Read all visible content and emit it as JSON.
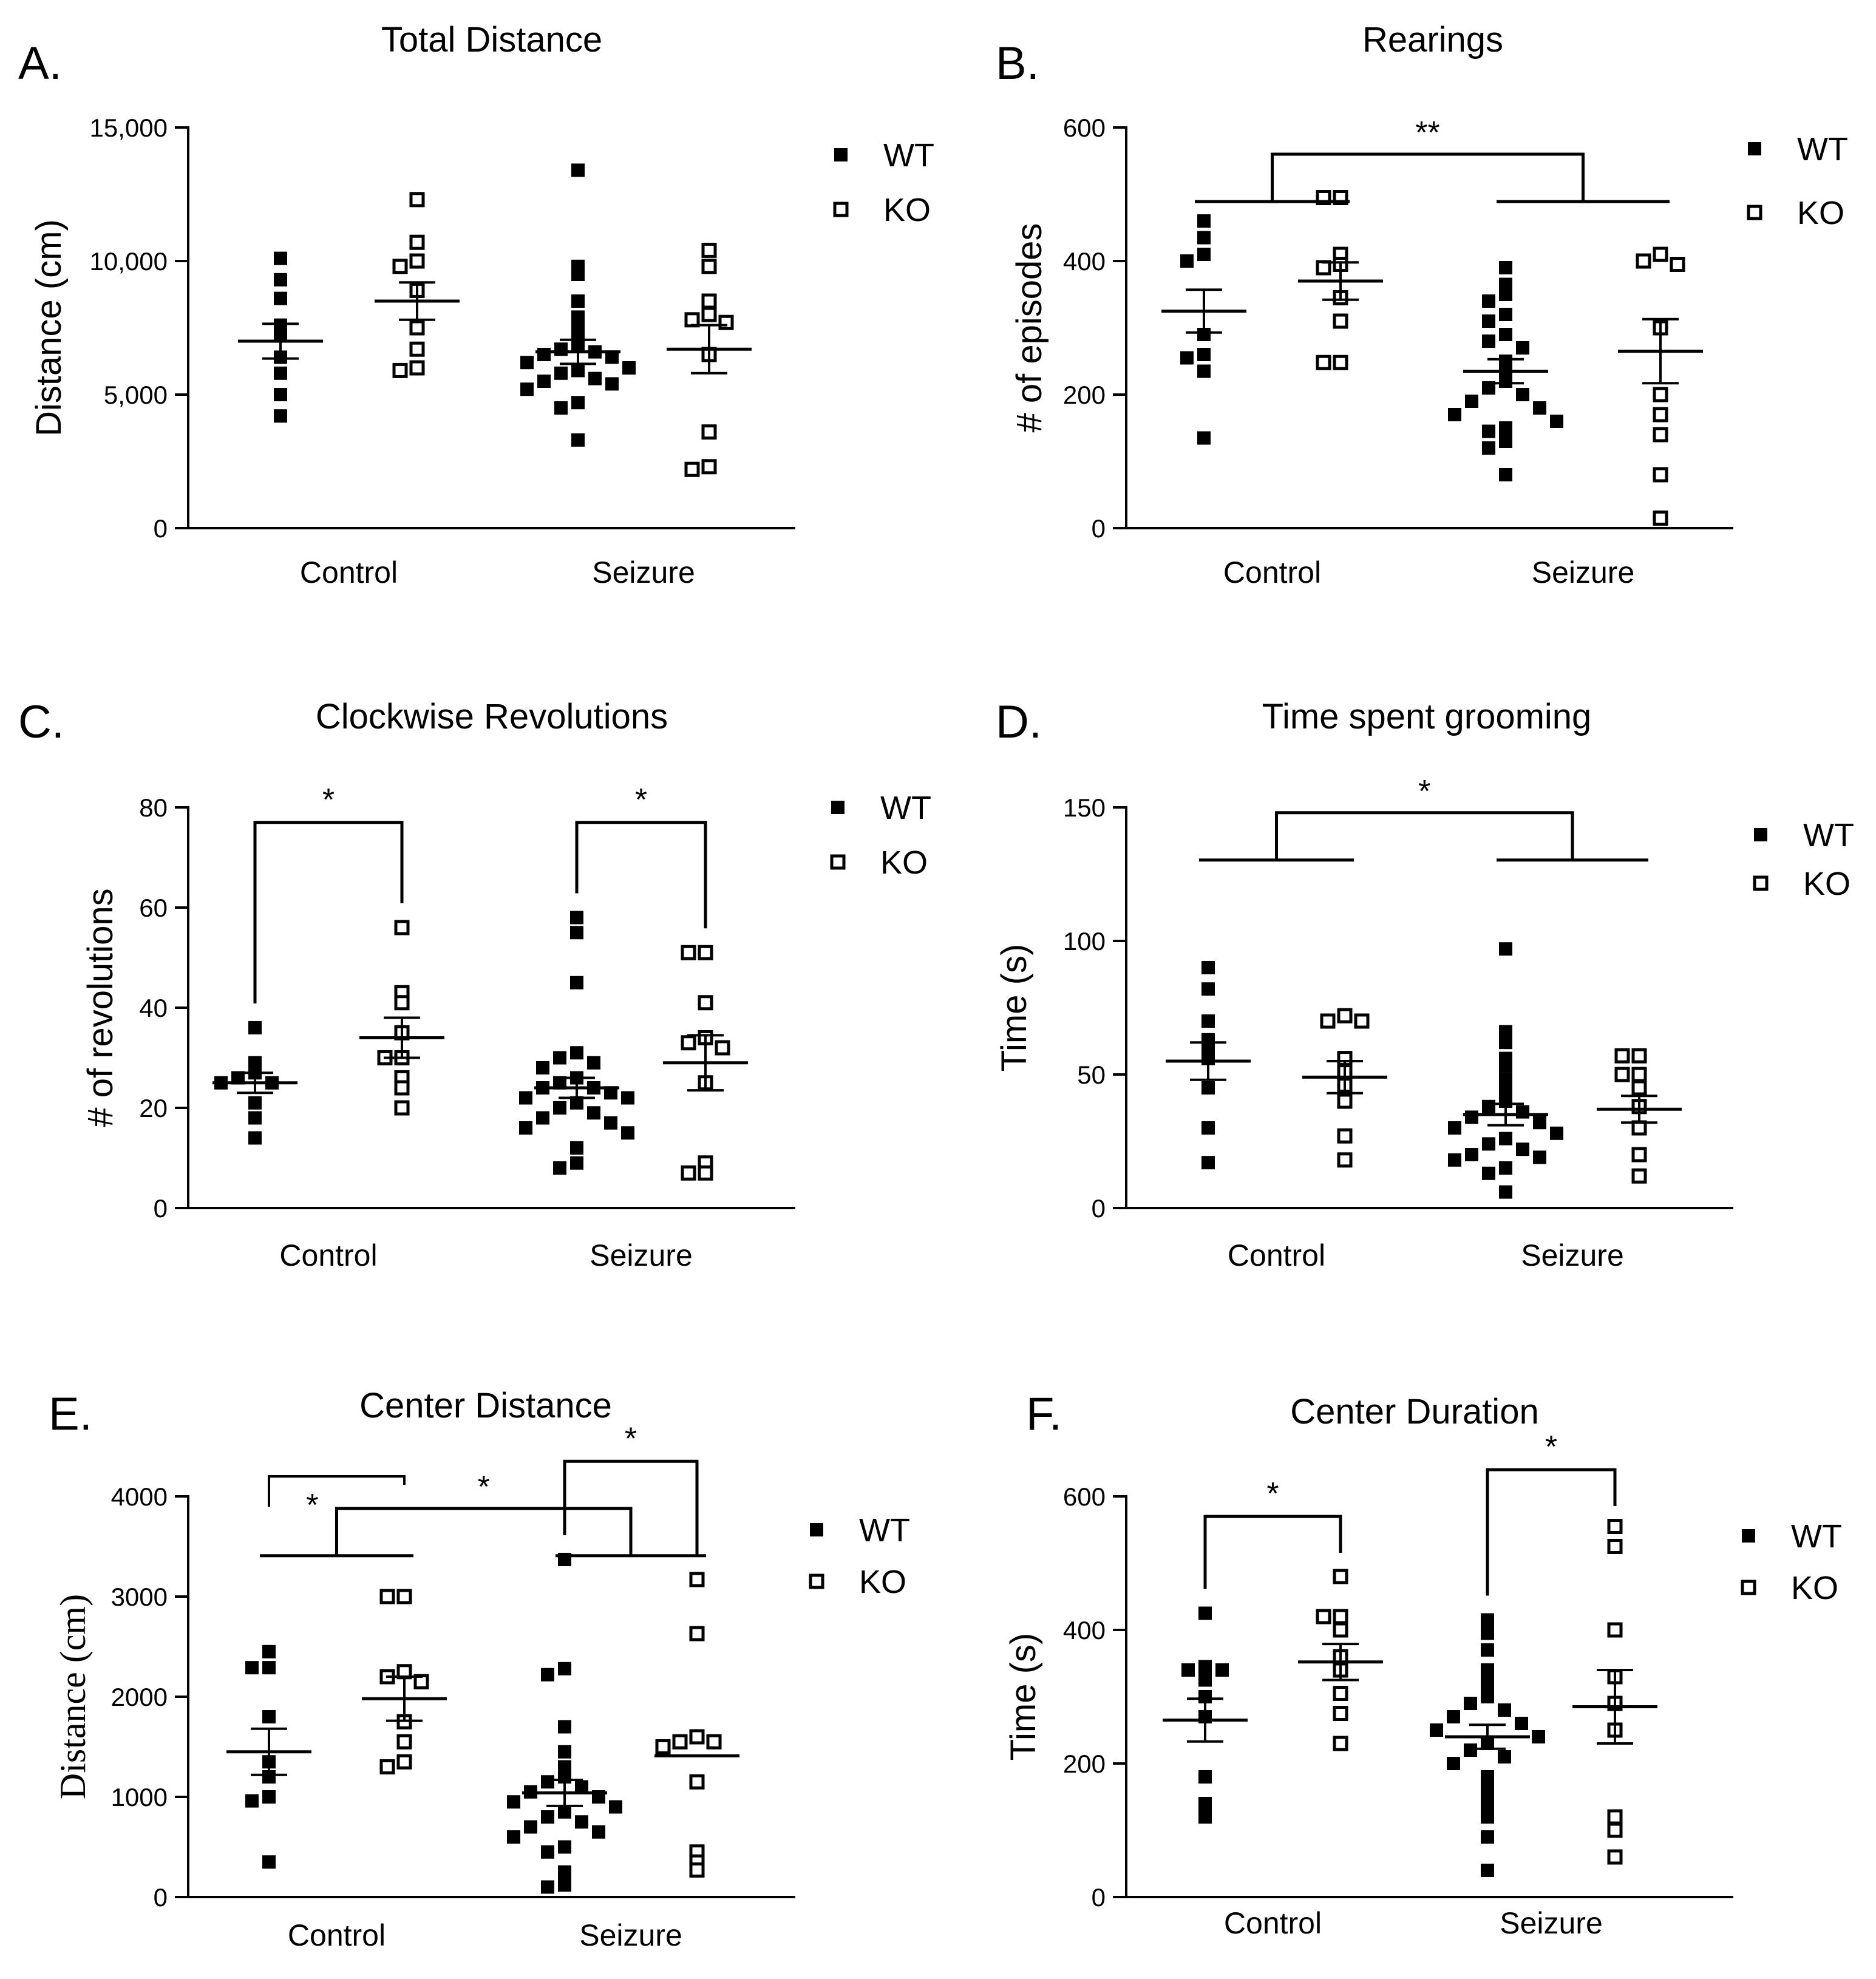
{
  "figure": {
    "legend": {
      "wt_label": "WT",
      "ko_label": "KO"
    },
    "colors": {
      "ink": "#000000",
      "background": "#ffffff"
    }
  },
  "chart_data": [
    {
      "id": "A",
      "letter": "A.",
      "type": "scatter",
      "title": "Total Distance",
      "xlabel": "",
      "ylabel": "Distance (cm)",
      "categories": [
        "Control",
        "Seizure"
      ],
      "ylim": [
        0,
        15000
      ],
      "yticks": [
        0,
        5000,
        10000,
        15000
      ],
      "ytick_labels": [
        "0",
        "5,000",
        "10,000",
        "15,000"
      ],
      "series": [
        {
          "name": "Control WT",
          "group": 0,
          "geno": "WT",
          "mean": 7000,
          "sem": 650,
          "values": [
            10100,
            9300,
            8600,
            7600,
            7300,
            6400,
            5800,
            5000,
            4200
          ]
        },
        {
          "name": "Control KO",
          "group": 0,
          "geno": "KO",
          "mean": 8500,
          "sem": 700,
          "values": [
            12300,
            10700,
            10000,
            9800,
            8900,
            7500,
            6700,
            6000,
            5900
          ]
        },
        {
          "name": "Seizure WT",
          "group": 1,
          "geno": "WT",
          "mean": 6600,
          "sem": 450,
          "values": [
            13400,
            9800,
            9500,
            8500,
            7900,
            7500,
            7200,
            6900,
            6700,
            6600,
            6500,
            6400,
            6200,
            6000,
            5900,
            5800,
            5600,
            5500,
            5400,
            5200,
            4700,
            4500,
            3300
          ]
        },
        {
          "name": "Seizure KO",
          "group": 1,
          "geno": "KO",
          "mean": 6700,
          "sem": 900,
          "values": [
            10400,
            9800,
            8500,
            8000,
            7800,
            7700,
            6500,
            3600,
            2300,
            2200
          ]
        }
      ],
      "significance": []
    },
    {
      "id": "B",
      "letter": "B.",
      "type": "scatter",
      "title": "Rearings",
      "xlabel": "",
      "ylabel": "# of episodes",
      "categories": [
        "Control",
        "Seizure"
      ],
      "ylim": [
        0,
        600
      ],
      "yticks": [
        0,
        200,
        400,
        600
      ],
      "ytick_labels": [
        "0",
        "200",
        "400",
        "600"
      ],
      "series": [
        {
          "name": "Control WT",
          "group": 0,
          "geno": "WT",
          "mean": 325,
          "sem": 32,
          "values": [
            460,
            435,
            410,
            400,
            290,
            260,
            255,
            235,
            135
          ]
        },
        {
          "name": "Control KO",
          "group": 0,
          "geno": "KO",
          "mean": 370,
          "sem": 28,
          "values": [
            495,
            495,
            410,
            395,
            390,
            345,
            310,
            248,
            248
          ]
        },
        {
          "name": "Seizure WT",
          "group": 1,
          "geno": "WT",
          "mean": 235,
          "sem": 18,
          "values": [
            390,
            365,
            350,
            340,
            320,
            310,
            290,
            280,
            270,
            250,
            235,
            220,
            210,
            200,
            190,
            180,
            170,
            160,
            150,
            145,
            130,
            120,
            80
          ]
        },
        {
          "name": "Seizure KO",
          "group": 1,
          "geno": "KO",
          "mean": 265,
          "sem": 48,
          "values": [
            410,
            400,
            395,
            300,
            200,
            170,
            140,
            80,
            15
          ]
        }
      ],
      "significance": [
        {
          "type": "group",
          "label": "**",
          "from": 0,
          "to": 1,
          "level": 560
        }
      ]
    },
    {
      "id": "C",
      "letter": "C.",
      "type": "scatter",
      "title": "Clockwise Revolutions",
      "xlabel": "",
      "ylabel": "# of revolutions",
      "categories": [
        "Control",
        "Seizure"
      ],
      "ylim": [
        0,
        80
      ],
      "yticks": [
        0,
        20,
        40,
        60,
        80
      ],
      "ytick_labels": [
        "0",
        "20",
        "40",
        "60",
        "80"
      ],
      "series": [
        {
          "name": "Control WT",
          "group": 0,
          "geno": "WT",
          "mean": 25,
          "sem": 2,
          "values": [
            36,
            29,
            27,
            26,
            25,
            25,
            21,
            18,
            14
          ]
        },
        {
          "name": "Control KO",
          "group": 0,
          "geno": "KO",
          "mean": 34,
          "sem": 4,
          "values": [
            56,
            43,
            41,
            35,
            30,
            30,
            26,
            24,
            20
          ]
        },
        {
          "name": "Seizure WT",
          "group": 1,
          "geno": "WT",
          "mean": 24,
          "sem": 2,
          "values": [
            58,
            55,
            45,
            31,
            30,
            29,
            28,
            26,
            25,
            24,
            24,
            23,
            22,
            22,
            21,
            20,
            19,
            18,
            17,
            16,
            15,
            12,
            9,
            8
          ]
        },
        {
          "name": "Seizure KO",
          "group": 1,
          "geno": "KO",
          "mean": 29,
          "sem": 5.5,
          "values": [
            51,
            51,
            41,
            34,
            33,
            32,
            25,
            9,
            7,
            7
          ]
        }
      ],
      "significance": [
        {
          "type": "pair",
          "label": "*",
          "group": 0,
          "level": 77
        },
        {
          "type": "pair",
          "label": "*",
          "group": 1,
          "level": 77
        }
      ]
    },
    {
      "id": "D",
      "letter": "D.",
      "type": "scatter",
      "title": "Time spent grooming",
      "xlabel": "",
      "ylabel": "Time (s)",
      "categories": [
        "Control",
        "Seizure"
      ],
      "ylim": [
        0,
        150
      ],
      "yticks": [
        0,
        50,
        100,
        150
      ],
      "ytick_labels": [
        "0",
        "50",
        "100",
        "150"
      ],
      "series": [
        {
          "name": "Control WT",
          "group": 0,
          "geno": "WT",
          "mean": 55,
          "sem": 7,
          "values": [
            90,
            82,
            70,
            63,
            60,
            56,
            45,
            30,
            17
          ]
        },
        {
          "name": "Control KO",
          "group": 0,
          "geno": "KO",
          "mean": 49,
          "sem": 6,
          "values": [
            72,
            70,
            70,
            56,
            51,
            46,
            40,
            27,
            18
          ]
        },
        {
          "name": "Seizure WT",
          "group": 1,
          "geno": "WT",
          "mean": 35,
          "sem": 4,
          "values": [
            97,
            66,
            62,
            56,
            53,
            48,
            45,
            40,
            38,
            36,
            34,
            32,
            30,
            28,
            26,
            24,
            22,
            20,
            19,
            18,
            15,
            13,
            6
          ]
        },
        {
          "name": "Seizure KO",
          "group": 1,
          "geno": "KO",
          "mean": 37,
          "sem": 5,
          "values": [
            57,
            57,
            50,
            50,
            45,
            38,
            30,
            20,
            12
          ]
        }
      ],
      "significance": [
        {
          "type": "group",
          "label": "*",
          "from": 0,
          "to": 1,
          "level": 148
        }
      ]
    },
    {
      "id": "E",
      "letter": "E.",
      "type": "scatter",
      "title": "Center Distance",
      "xlabel": "",
      "ylabel": "Distance (cm)",
      "categories": [
        "Control",
        "Seizure"
      ],
      "ylim": [
        0,
        4000
      ],
      "yticks": [
        0,
        1000,
        2000,
        3000,
        4000
      ],
      "ytick_labels": [
        "0",
        "1000",
        "2000",
        "3000",
        "4000"
      ],
      "series": [
        {
          "name": "Control WT",
          "group": 0,
          "geno": "WT",
          "mean": 1450,
          "sem": 230,
          "values": [
            2450,
            2290,
            2290,
            1800,
            1350,
            1200,
            1000,
            960,
            350
          ]
        },
        {
          "name": "Control KO",
          "group": 0,
          "geno": "KO",
          "mean": 1980,
          "sem": 220,
          "values": [
            3000,
            3000,
            2250,
            2200,
            2150,
            1750,
            1550,
            1350,
            1300
          ]
        },
        {
          "name": "Seizure WT",
          "group": 1,
          "geno": "WT",
          "mean": 1040,
          "sem": 130,
          "values": [
            3370,
            2280,
            2220,
            1700,
            1450,
            1300,
            1200,
            1150,
            1100,
            1050,
            1000,
            950,
            900,
            850,
            800,
            750,
            700,
            650,
            600,
            500,
            450,
            250,
            120,
            100
          ]
        },
        {
          "name": "Seizure KO",
          "group": 1,
          "geno": "KO",
          "mean": 1410,
          "sem": 0,
          "values": [
            3170,
            2630,
            1600,
            1550,
            1550,
            1500,
            1150,
            450,
            350,
            270
          ]
        }
      ],
      "significance": [
        {
          "type": "pairlow",
          "label": "*",
          "group": 0,
          "level": 4200
        },
        {
          "type": "group",
          "label": "*",
          "from": 0,
          "to": 1,
          "level": 3880
        },
        {
          "type": "pair",
          "label": "*",
          "group": 1,
          "level": 4350
        }
      ]
    },
    {
      "id": "F",
      "letter": "F.",
      "type": "scatter",
      "title": "Center Duration",
      "xlabel": "",
      "ylabel": "Time (s)",
      "categories": [
        "Control",
        "Seizure"
      ],
      "ylim": [
        0,
        600
      ],
      "yticks": [
        0,
        200,
        400,
        600
      ],
      "ytick_labels": [
        "0",
        "200",
        "400",
        "600"
      ],
      "series": [
        {
          "name": "Control WT",
          "group": 0,
          "geno": "WT",
          "mean": 265,
          "sem": 32,
          "values": [
            425,
            345,
            340,
            340,
            325,
            300,
            270,
            180,
            140,
            120
          ]
        },
        {
          "name": "Control KO",
          "group": 0,
          "geno": "KO",
          "mean": 352,
          "sem": 27,
          "values": [
            480,
            420,
            420,
            400,
            360,
            340,
            305,
            275,
            230
          ]
        },
        {
          "name": "Seizure WT",
          "group": 1,
          "geno": "WT",
          "mean": 240,
          "sem": 18,
          "values": [
            415,
            395,
            370,
            340,
            320,
            300,
            290,
            280,
            270,
            260,
            250,
            240,
            230,
            220,
            210,
            200,
            180,
            160,
            140,
            120,
            90,
            40
          ]
        },
        {
          "name": "Seizure KO",
          "group": 1,
          "geno": "KO",
          "mean": 285,
          "sem": 55,
          "values": [
            555,
            525,
            400,
            330,
            290,
            250,
            120,
            100,
            60
          ]
        }
      ],
      "significance": [
        {
          "type": "pair",
          "label": "*",
          "group": 0,
          "level": 570
        },
        {
          "type": "pair",
          "label": "*",
          "group": 1,
          "level": 640
        }
      ]
    }
  ]
}
